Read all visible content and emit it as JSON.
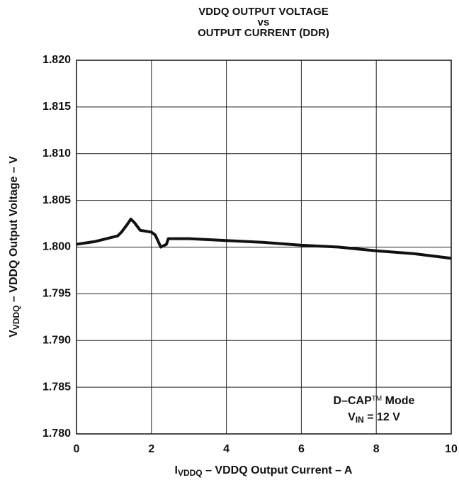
{
  "chart_data": {
    "type": "line",
    "title": [
      "VDDQ OUTPUT VOLTAGE",
      "vs",
      "OUTPUT CURRENT (DDR)"
    ],
    "xlabel": [
      "I",
      "VDDQ",
      " – VDDQ Output Current – A"
    ],
    "ylabel": [
      "V",
      "VDDQ",
      " – VDDQ Output Voltage – V"
    ],
    "annotation": [
      [
        "D–CAP",
        "TM",
        " Mode"
      ],
      [
        "V",
        "IN",
        " = 12 V"
      ]
    ],
    "x": [
      0,
      0.5,
      0.9,
      1.1,
      1.2,
      1.35,
      1.45,
      1.55,
      1.7,
      2.0,
      2.1,
      2.25,
      2.4,
      2.45,
      3,
      4,
      5,
      6,
      7,
      8,
      9,
      10
    ],
    "series": [
      {
        "color": "#111111",
        "values": [
          1.8003,
          1.8006,
          1.801,
          1.8012,
          1.8016,
          1.8024,
          1.803,
          1.8026,
          1.8018,
          1.8016,
          1.8013,
          1.8,
          1.8003,
          1.8009,
          1.8009,
          1.8007,
          1.8005,
          1.8002,
          1.8,
          1.7996,
          1.7993,
          1.7988
        ]
      }
    ],
    "xlim": [
      0,
      10
    ],
    "xticks": [
      0,
      2,
      4,
      6,
      8,
      10
    ],
    "ylim": [
      1.78,
      1.82
    ],
    "yticks": [
      {
        "value": 1.78,
        "label": "1.780"
      },
      {
        "value": 1.785,
        "label": "1.785"
      },
      {
        "value": 1.79,
        "label": "1.790"
      },
      {
        "value": 1.795,
        "label": "1.795"
      },
      {
        "value": 1.8,
        "label": "1.800"
      },
      {
        "value": 1.805,
        "label": "1.805"
      },
      {
        "value": 1.81,
        "label": "1.810"
      },
      {
        "value": 1.815,
        "label": "1.815"
      },
      {
        "value": 1.82,
        "label": "1.820"
      }
    ],
    "grid": true
  }
}
